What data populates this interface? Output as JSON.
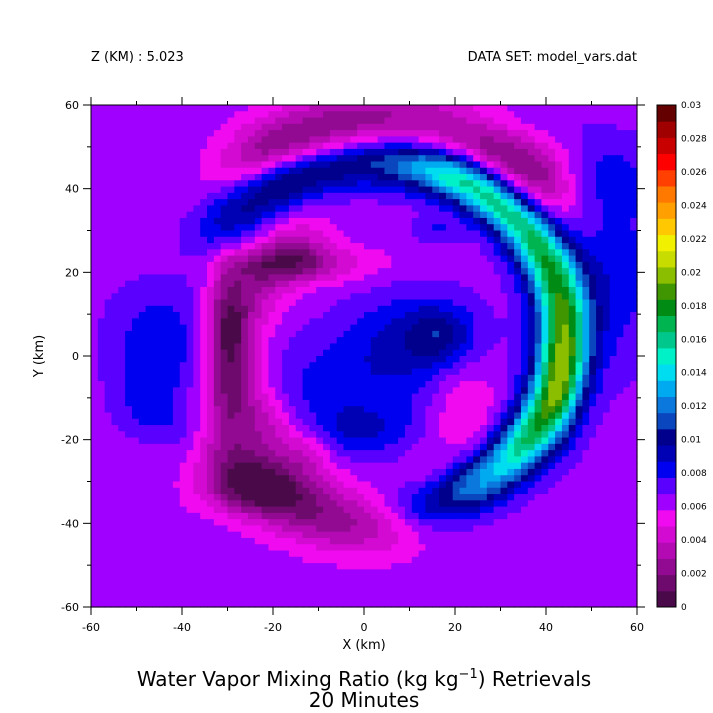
{
  "header": {
    "z_label": "Z (KM) : 5.023",
    "dataset_label": "DATA SET: model_vars.dat"
  },
  "chart_data": {
    "type": "heatmap",
    "title_line1_pre": "Water Vapor Mixing Ratio (kg kg",
    "title_line1_sup": "−1",
    "title_line1_post": ") Retrievals",
    "title_line2": "20 Minutes",
    "xlabel": "X (km)",
    "ylabel": "Y (km)",
    "xlim": [
      -60,
      60
    ],
    "ylim": [
      -60,
      60
    ],
    "x_ticks": [
      -60,
      -40,
      -20,
      0,
      20,
      40,
      60
    ],
    "y_ticks": [
      -60,
      -40,
      -20,
      0,
      20,
      40,
      60
    ],
    "grid": false,
    "colorbar": {
      "min": 0,
      "max": 0.03,
      "step": 0.001,
      "tick_labels": [
        "0",
        "0.002",
        "0.004",
        "0.006",
        "0.008",
        "0.01",
        "0.012",
        "0.014",
        "0.016",
        "0.018",
        "0.02",
        "0.022",
        "0.024",
        "0.026",
        "0.028",
        "0.03"
      ],
      "colors": [
        "#4a0a4a",
        "#6e0a6e",
        "#920a92",
        "#b40ab4",
        "#d20ad2",
        "#f00af0",
        "#a000ff",
        "#5a00ff",
        "#0000f0",
        "#0000b4",
        "#00008c",
        "#0a46be",
        "#0a78dc",
        "#00aaf0",
        "#00dcf0",
        "#00f0c8",
        "#00c88c",
        "#00b450",
        "#008c14",
        "#409600",
        "#8cbe00",
        "#c8dc00",
        "#f0f000",
        "#ffc800",
        "#ffa000",
        "#ff7800",
        "#ff4000",
        "#ff0000",
        "#c80000",
        "#a00000",
        "#640000"
      ]
    },
    "field_features": [
      {
        "kind": "background",
        "value": 0.0065
      },
      {
        "kind": "blob",
        "x": -15,
        "y": 5,
        "sx": 14,
        "sy": 14,
        "amp": -0.0005
      },
      {
        "kind": "arc",
        "cx": 5,
        "cy": 8,
        "r": 47,
        "w": 6,
        "a0": 50,
        "a1": 120,
        "amp": -0.0052
      },
      {
        "kind": "arc",
        "cx": 0,
        "cy": 2,
        "r": 28,
        "w": 5,
        "a0": 125,
        "a1": 240,
        "amp": -0.003
      },
      {
        "kind": "arc",
        "cx": -2,
        "cy": -8,
        "r": 30,
        "w": 6,
        "a0": 195,
        "a1": 305,
        "amp": -0.0025
      },
      {
        "kind": "arc",
        "cx": 5,
        "cy": 2,
        "r": 43,
        "w": 5,
        "a0": 220,
        "a1": 265,
        "amp": -0.002
      },
      {
        "kind": "blob",
        "x": -15,
        "y": 22,
        "sx": 12,
        "sy": 3,
        "amp": -0.003
      },
      {
        "kind": "blob",
        "x": -30,
        "y": 5,
        "sx": 3,
        "sy": 12,
        "amp": -0.004
      },
      {
        "kind": "blob",
        "x": -25,
        "y": -32,
        "sx": 8,
        "sy": 4,
        "amp": -0.0035
      },
      {
        "kind": "blob",
        "x": 22,
        "y": -13,
        "sx": 6,
        "sy": 9,
        "amp": -0.0022
      },
      {
        "kind": "blob",
        "x": -5,
        "y": 48,
        "sx": 10,
        "sy": 4,
        "amp": -0.0015
      },
      {
        "kind": "blob",
        "x": -45,
        "y": 3,
        "sx": 8,
        "sy": 10,
        "amp": 0.0022
      },
      {
        "kind": "blob",
        "x": -47,
        "y": -12,
        "sx": 5,
        "sy": 5,
        "amp": 0.0015
      },
      {
        "kind": "blob",
        "x": -37,
        "y": -17,
        "sx": 5,
        "sy": 4,
        "amp": 0.0015
      },
      {
        "kind": "blob",
        "x": 10,
        "y": 5,
        "sx": 10,
        "sy": 8,
        "amp": 0.002
      },
      {
        "kind": "blob",
        "x": 54,
        "y": 20,
        "sx": 8,
        "sy": 16,
        "amp": 0.0022
      },
      {
        "kind": "blob",
        "x": -5,
        "y": -8,
        "sx": 18,
        "sy": 12,
        "amp": 0.0022
      },
      {
        "kind": "blob",
        "x": -3,
        "y": -18,
        "sx": 9,
        "sy": 4,
        "amp": 0.0015
      },
      {
        "kind": "arc",
        "cx": 2,
        "cy": 5,
        "r": 42,
        "w": 5,
        "a0": -75,
        "a1": 135,
        "amp": 0.0036
      },
      {
        "kind": "arc",
        "cx": 2,
        "cy": 5,
        "r": 42,
        "w": 4,
        "a0": -60,
        "a1": 115,
        "amp": 0.0036
      },
      {
        "kind": "arc",
        "cx": 2,
        "cy": 5,
        "r": 42,
        "w": 3.5,
        "a0": -30,
        "a1": 60,
        "amp": 0.004
      },
      {
        "kind": "blob",
        "x": 43,
        "y": -5,
        "sx": 3.5,
        "sy": 11,
        "amp": 0.003
      },
      {
        "kind": "blob",
        "x": 16,
        "y": 30,
        "sx": 4,
        "sy": 2,
        "amp": 0.0015
      },
      {
        "kind": "blob",
        "x": 17,
        "y": 5,
        "sx": 5,
        "sy": 5,
        "amp": 0.0025
      },
      {
        "kind": "blob",
        "x": 53,
        "y": 43,
        "sx": 8,
        "sy": 6,
        "amp": 0.0015
      },
      {
        "kind": "blob",
        "x": 20,
        "y": 55,
        "sx": 15,
        "sy": 4,
        "amp": 0.0015
      }
    ]
  }
}
